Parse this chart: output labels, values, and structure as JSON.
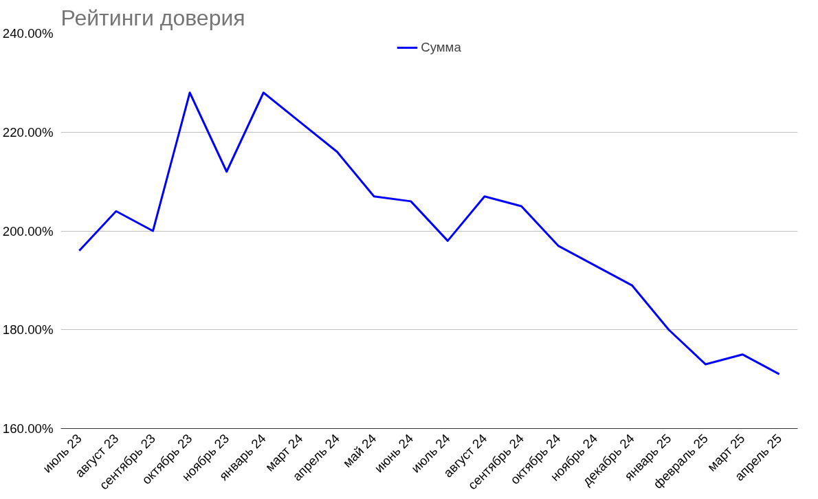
{
  "chart_data": {
    "type": "line",
    "title": "Рейтинги доверия",
    "categories": [
      "июль 23",
      "август 23",
      "сентябрь 23",
      "октябрь 23",
      "ноябрь 23",
      "январь 24",
      "март 24",
      "апрель 24",
      "май 24",
      "июнь 24",
      "июль 24",
      "август 24",
      "сентябрь 24",
      "октябрь 24",
      "ноябрь 24",
      "декабрь 24",
      "январь 25",
      "февраль 25",
      "март 25",
      "апрель 25"
    ],
    "series": [
      {
        "name": "Сумма",
        "color": "#0000ff",
        "values": [
          196,
          204,
          200,
          228,
          212,
          228,
          222,
          216,
          207,
          206,
          198,
          207,
          205,
          197,
          193,
          189,
          180,
          173,
          175,
          171
        ]
      }
    ],
    "ylim": [
      160,
      240
    ],
    "yticks": [
      {
        "value": 160,
        "label": "160.00%"
      },
      {
        "value": 180,
        "label": "180.00%"
      },
      {
        "value": 200,
        "label": "200.00%"
      },
      {
        "value": 220,
        "label": "220.00%"
      },
      {
        "value": 240,
        "label": "240.00%"
      }
    ],
    "grid": "y",
    "legend": "top"
  }
}
